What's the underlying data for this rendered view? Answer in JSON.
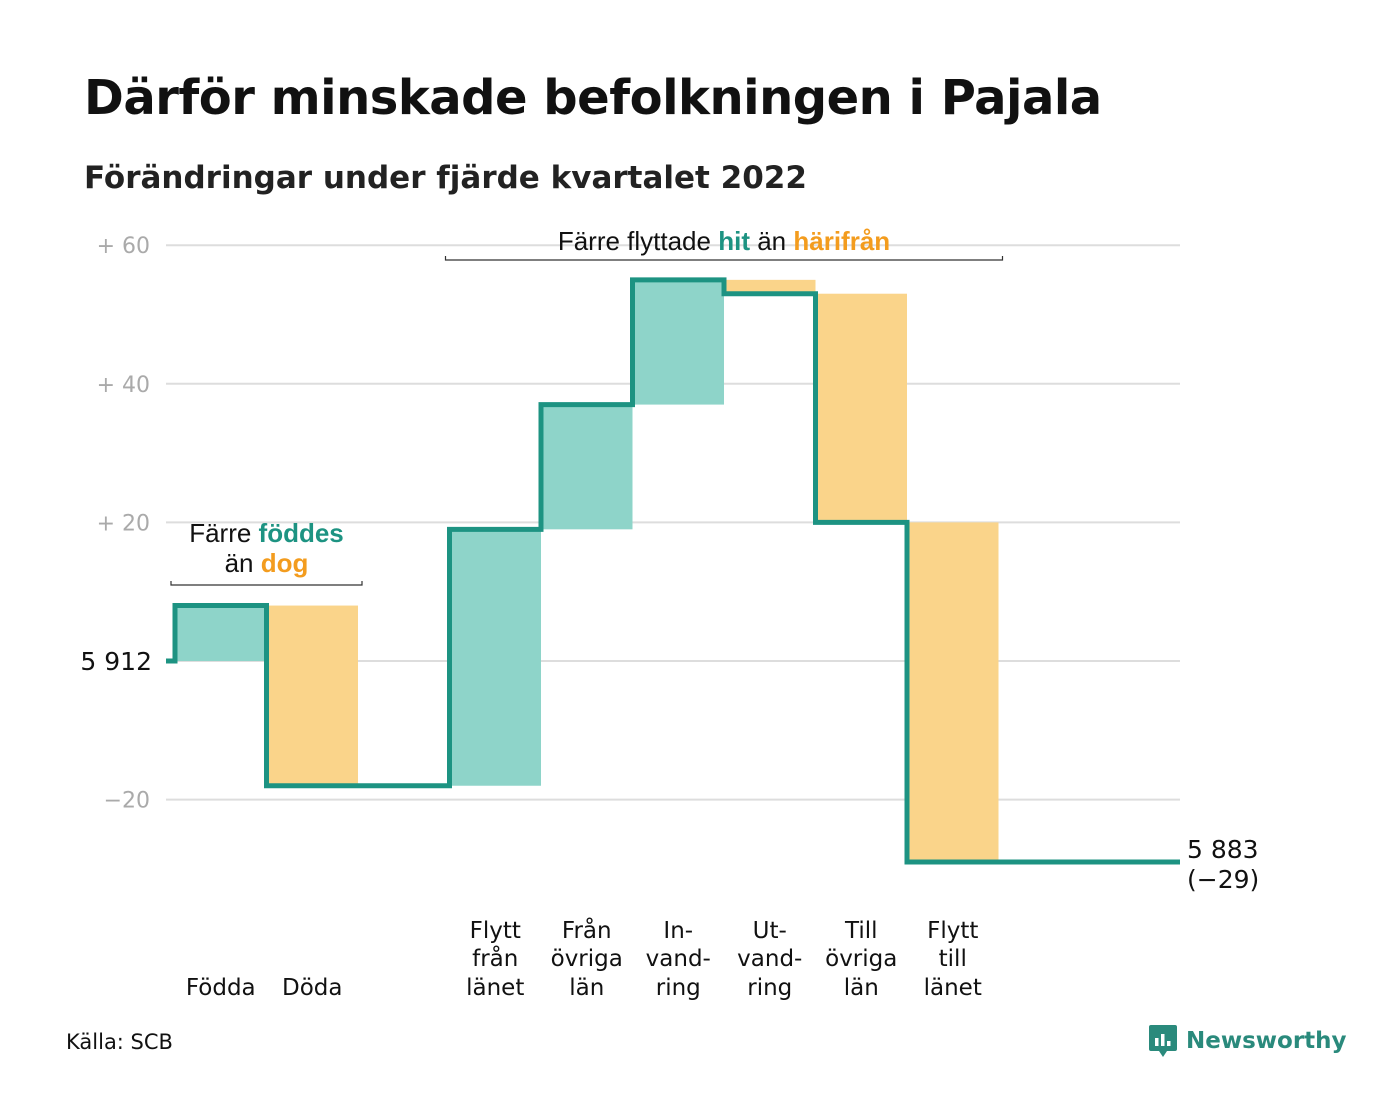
{
  "title": "Därför minskade befolkningen i Pajala",
  "subtitle": "Förändringar under fjärde kvartalet 2022",
  "source": "Källa: SCB",
  "brand": {
    "name": "Newsworthy",
    "icon": "newsworthy-logo-icon"
  },
  "colors": {
    "increase": "#8ed4c9",
    "decrease": "#fad48a",
    "line": "#1d9382",
    "teal_text": "#1d9382",
    "orange_text": "#f39c1e",
    "grid": "#dddddd",
    "axis_text": "#aaaaaa"
  },
  "chart_data": {
    "type": "waterfall",
    "baseline": 5912,
    "baseline_label": "5 912",
    "final": 5883,
    "final_label": "5 883",
    "final_change_label": "(−29)",
    "ylim": [
      -30,
      60
    ],
    "y_ticks": [
      {
        "value": 60,
        "label": "+ 60"
      },
      {
        "value": 40,
        "label": "+ 40"
      },
      {
        "value": 20,
        "label": "+ 20"
      },
      {
        "value": 0,
        "label": ""
      },
      {
        "value": -20,
        "label": "−20"
      }
    ],
    "steps": [
      {
        "lines": [
          "",
          "",
          "Födda"
        ],
        "change": 8
      },
      {
        "lines": [
          "",
          "",
          "Döda"
        ],
        "change": -26
      },
      {
        "lines": [
          "",
          "",
          ""
        ],
        "change": 0
      },
      {
        "lines": [
          "Flytt",
          "från",
          "länet"
        ],
        "change": 37
      },
      {
        "lines": [
          "Från",
          "övriga",
          "län"
        ],
        "change": 18
      },
      {
        "lines": [
          "In-",
          "vand-",
          "ring"
        ],
        "change": 18
      },
      {
        "lines": [
          "Ut-",
          "vand-",
          "ring"
        ],
        "change": -2
      },
      {
        "lines": [
          "Till",
          "övriga",
          "län"
        ],
        "change": -33
      },
      {
        "lines": [
          "Flytt",
          "till",
          "länet"
        ],
        "change": -49
      },
      {
        "lines": [
          "",
          "",
          ""
        ],
        "change": 0
      }
    ],
    "annotations": [
      {
        "lines": [
          [
            {
              "text": "Färre ",
              "tone": "plain"
            },
            {
              "text": "föddes",
              "tone": "teal"
            }
          ],
          [
            {
              "text": "än ",
              "tone": "plain"
            },
            {
              "text": "dog",
              "tone": "orange"
            }
          ]
        ],
        "from_step": 0,
        "to_step": 1
      },
      {
        "lines": [
          [
            {
              "text": "Färre flyttade ",
              "tone": "plain"
            },
            {
              "text": "hit",
              "tone": "teal"
            },
            {
              "text": " än ",
              "tone": "plain"
            },
            {
              "text": "härifrån",
              "tone": "orange"
            }
          ]
        ],
        "from_step": 3,
        "to_step": 8
      }
    ]
  }
}
